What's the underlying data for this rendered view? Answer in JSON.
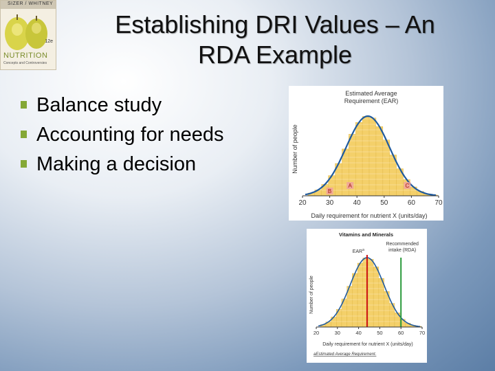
{
  "slide": {
    "title_line1": "Establishing DRI Values – An",
    "title_line2": "RDA Example",
    "bullets": [
      "Balance study",
      "Accounting for needs",
      "Making a decision"
    ],
    "accent_color": "#84a836"
  },
  "logo": {
    "authors": "SIZER / WHITNEY",
    "edition": "12e",
    "brand": "NUTRITION",
    "subtitle": "Concepts and Controversies"
  },
  "chart_data": [
    {
      "type": "bar",
      "title": "Estimated Average Requirement (EAR)",
      "ylabel": "Number of people",
      "xlabel": "Daily requirement for nutrient X (units/day)",
      "x_ticks": [
        20,
        30,
        40,
        50,
        60,
        70
      ],
      "xlim": [
        20,
        70
      ],
      "curve": "normal",
      "mean": 44,
      "sd": 8,
      "annotations": [
        {
          "label": "A",
          "x": 40
        },
        {
          "label": "B",
          "x": 30
        },
        {
          "label": "C",
          "x": 60
        }
      ],
      "colors": {
        "bars": "#f4d06a",
        "curve": "#1f5a9e",
        "frame": "#ffffff"
      }
    },
    {
      "type": "bar",
      "header": "Vitamins and Minerals",
      "ylabel": "Number of people",
      "xlabel": "Daily requirement for nutrient X (units/day)",
      "x_ticks": [
        20,
        30,
        40,
        50,
        60,
        70
      ],
      "xlim": [
        20,
        70
      ],
      "curve": "normal",
      "mean": 44,
      "sd": 8,
      "lines": [
        {
          "label": "EARa",
          "x": 44,
          "color": "#cc1111"
        },
        {
          "label": "Recommended intake (RDA)",
          "x": 60,
          "color": "#2a9a3a"
        }
      ],
      "footnote": "aEstimated Average Requirement.",
      "colors": {
        "bars": "#f4d06a",
        "curve": "#1f5a9e",
        "frame": "#ffffff"
      }
    }
  ]
}
